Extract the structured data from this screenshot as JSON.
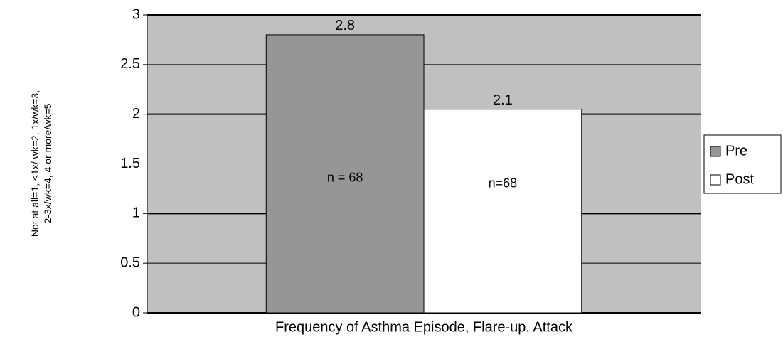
{
  "chart_data": {
    "type": "bar",
    "categories": [
      "Frequency of Asthma Episode, Flare-up, Attack"
    ],
    "y_label": [
      "Not at all=1, <1x/ wk=2, 1x/wk=3,",
      "2-3x/wk=4, 4 or more/wk=5"
    ],
    "series": [
      {
        "name": "Pre",
        "color": "#969696",
        "values": [
          2.8
        ],
        "value_labels": [
          "2.8"
        ],
        "annotation": "n = 68"
      },
      {
        "name": "Post",
        "color": "#ffffff",
        "values": [
          2.05
        ],
        "value_labels": [
          "2.1"
        ],
        "annotation": "n=68"
      }
    ],
    "ylim": [
      0,
      3
    ],
    "yticks": [
      0,
      0.5,
      1,
      1.5,
      2,
      2.5,
      3
    ],
    "grid": true,
    "plot_background": "#c0c0c0",
    "legend": "right"
  }
}
